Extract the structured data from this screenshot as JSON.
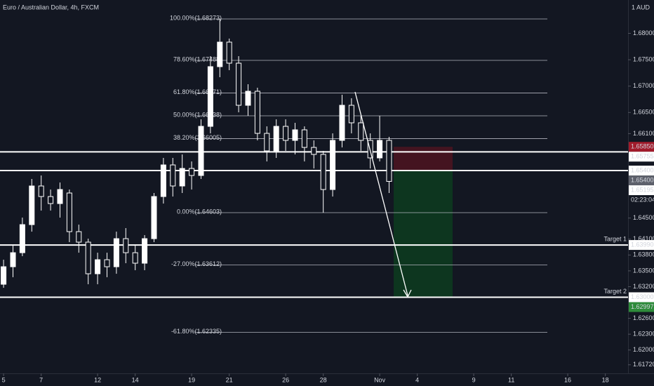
{
  "chart_data": {
    "type": "candlestick",
    "title": "Euro / Australian Dollar, 4h, FXCM",
    "currency": "1 AUD",
    "color": "#ffffff",
    "x": [
      0,
      0.5,
      1,
      1.5,
      2,
      2.5,
      3,
      3.5,
      4,
      4.5,
      5,
      5.5,
      6,
      6.5,
      7,
      7.5,
      8,
      8.5,
      9,
      9.5,
      10,
      10.5,
      11,
      11.5,
      12,
      12.5,
      13,
      13.5,
      14,
      14.5,
      15,
      15.5,
      16,
      16.5,
      17,
      17.5,
      18,
      18.5,
      19,
      19.5,
      20,
      20.5
    ],
    "open": [
      1.63246,
      1.63578,
      1.63844,
      1.64376,
      1.65108,
      1.64908,
      1.64775,
      1.64975,
      1.64243,
      1.64044,
      1.63445,
      1.63711,
      1.63578,
      1.6411,
      1.63844,
      1.63645,
      1.6411,
      1.64908,
      1.65507,
      1.65108,
      1.6544,
      1.65307,
      1.66238,
      1.67369,
      1.67834,
      1.67435,
      1.66637,
      1.66903,
      1.66105,
      1.65773,
      1.66238,
      1.65972,
      1.66172,
      1.65839,
      1.65706,
      1.65041,
      1.65972,
      1.66637,
      1.66305,
      1.65972,
      1.6564,
      1.65972
    ],
    "close": [
      1.63578,
      1.63844,
      1.64376,
      1.65108,
      1.64908,
      1.64775,
      1.65041,
      1.64243,
      1.64044,
      1.63445,
      1.63711,
      1.63578,
      1.6411,
      1.63844,
      1.63645,
      1.6411,
      1.64908,
      1.65507,
      1.65108,
      1.6544,
      1.65307,
      1.66238,
      1.67369,
      1.67834,
      1.67435,
      1.66637,
      1.66903,
      1.66105,
      1.65773,
      1.66238,
      1.65972,
      1.66172,
      1.65839,
      1.65706,
      1.65041,
      1.65972,
      1.66637,
      1.66305,
      1.65972,
      1.6564,
      1.65972,
      1.65195
    ],
    "high": [
      1.63711,
      1.63977,
      1.64509,
      1.65241,
      1.65307,
      1.65041,
      1.65174,
      1.65041,
      1.64376,
      1.6411,
      1.63844,
      1.63844,
      1.64243,
      1.6431,
      1.63977,
      1.64177,
      1.64975,
      1.6564,
      1.6564,
      1.65706,
      1.65573,
      1.66371,
      1.67568,
      1.68273,
      1.67901,
      1.67568,
      1.67036,
      1.6697,
      1.66238,
      1.66371,
      1.66371,
      1.66305,
      1.66238,
      1.65972,
      1.65773,
      1.66105,
      1.66837,
      1.6677,
      1.66438,
      1.66105,
      1.66438,
      1.66039
    ],
    "low": [
      1.63179,
      1.63379,
      1.63778,
      1.64243,
      1.64642,
      1.64642,
      1.64509,
      1.64044,
      1.63844,
      1.63246,
      1.63246,
      1.63379,
      1.63445,
      1.63645,
      1.63512,
      1.63512,
      1.64044,
      1.64775,
      1.64908,
      1.64975,
      1.65041,
      1.65241,
      1.66105,
      1.67169,
      1.67302,
      1.66504,
      1.66438,
      1.65972,
      1.65573,
      1.6564,
      1.65773,
      1.65706,
      1.65573,
      1.6544,
      1.64603,
      1.64908,
      1.65839,
      1.66105,
      1.65773,
      1.6544,
      1.65573,
      1.64975
    ],
    "xlim": [
      -0.19,
      33.02
    ],
    "xticks": [
      {
        "value": 0,
        "label": "5"
      },
      {
        "value": 2,
        "label": "7"
      },
      {
        "value": 5,
        "label": "12"
      },
      {
        "value": 7,
        "label": "14"
      },
      {
        "value": 10,
        "label": "19"
      },
      {
        "value": 12,
        "label": "21"
      },
      {
        "value": 15,
        "label": "26"
      },
      {
        "value": 17,
        "label": "28"
      },
      {
        "value": 20,
        "label": "Nov"
      },
      {
        "value": 22,
        "label": "4"
      },
      {
        "value": 25,
        "label": "9"
      },
      {
        "value": 27,
        "label": "11"
      },
      {
        "value": 30,
        "label": "16"
      },
      {
        "value": 32,
        "label": "18"
      }
    ],
    "ylim": [
      1.61717,
      1.68632
    ],
    "yticks": [
      {
        "value": 1.68,
        "label": "1.68000"
      },
      {
        "value": 1.675,
        "label": "1.67500"
      },
      {
        "value": 1.67,
        "label": "1.67000"
      },
      {
        "value": 1.665,
        "label": "1.66500"
      },
      {
        "value": 1.661,
        "label": "1.66100"
      },
      {
        "value": 1.645,
        "label": "1.64500"
      },
      {
        "value": 1.641,
        "label": "1.64100"
      },
      {
        "value": 1.638,
        "label": "1.63800"
      },
      {
        "value": 1.635,
        "label": "1.63500"
      },
      {
        "value": 1.632,
        "label": "1.63200"
      },
      {
        "value": 1.626,
        "label": "1.62600"
      },
      {
        "value": 1.623,
        "label": "1.62300"
      },
      {
        "value": 1.62,
        "label": "1.62000"
      },
      {
        "value": 1.6172,
        "label": "1.61720"
      }
    ],
    "fib_levels": [
      {
        "value": 1.68273,
        "label": "100.00%(1.68273)"
      },
      {
        "value": 1.67488,
        "label": "78.60%(1.67488)"
      },
      {
        "value": 1.66871,
        "label": "61.80%(1.66871)"
      },
      {
        "value": 1.66438,
        "label": "50.00%(1.66438)"
      },
      {
        "value": 1.66005,
        "label": "38.20%(1.66005)"
      },
      {
        "value": 1.64603,
        "label": "0.00%(1.64603)"
      },
      {
        "value": 1.63612,
        "label": "-27.00%(1.63612)"
      },
      {
        "value": 1.62335,
        "label": "-61.80%(1.62335)"
      }
    ],
    "levels": [
      {
        "value": 1.65755
      },
      {
        "value": 1.654
      },
      {
        "value": 1.6399,
        "label": "Target 1"
      },
      {
        "value": 1.63,
        "label": "Target 2"
      }
    ],
    "position": {
      "stop": 1.6585,
      "entry": 1.654,
      "target": 1.63,
      "stop_color": "#4a1420",
      "target_color": "#0d3a1f"
    },
    "badges": [
      {
        "value": 1.6585,
        "label": "1.65850",
        "color": "#a11b2b"
      },
      {
        "value": 1.65755,
        "label": "1.65755",
        "color": "#ffffff"
      },
      {
        "value": 1.654,
        "label": "1.65400",
        "color": "#ffffff"
      },
      {
        "value": 1.654,
        "label": "1.65400",
        "color": "#5d606b"
      },
      {
        "value": 1.65195,
        "label": "1.65195",
        "color": "#ffffff"
      },
      {
        "value": 1.6399,
        "label": "1.63990",
        "color": "#ffffff"
      },
      {
        "value": 1.63,
        "label": "1.63000",
        "color": "#ffffff"
      },
      {
        "value": 1.62997,
        "label": "1.62997",
        "color": "#2e8b3a"
      }
    ],
    "countdown": "02:23:04"
  }
}
